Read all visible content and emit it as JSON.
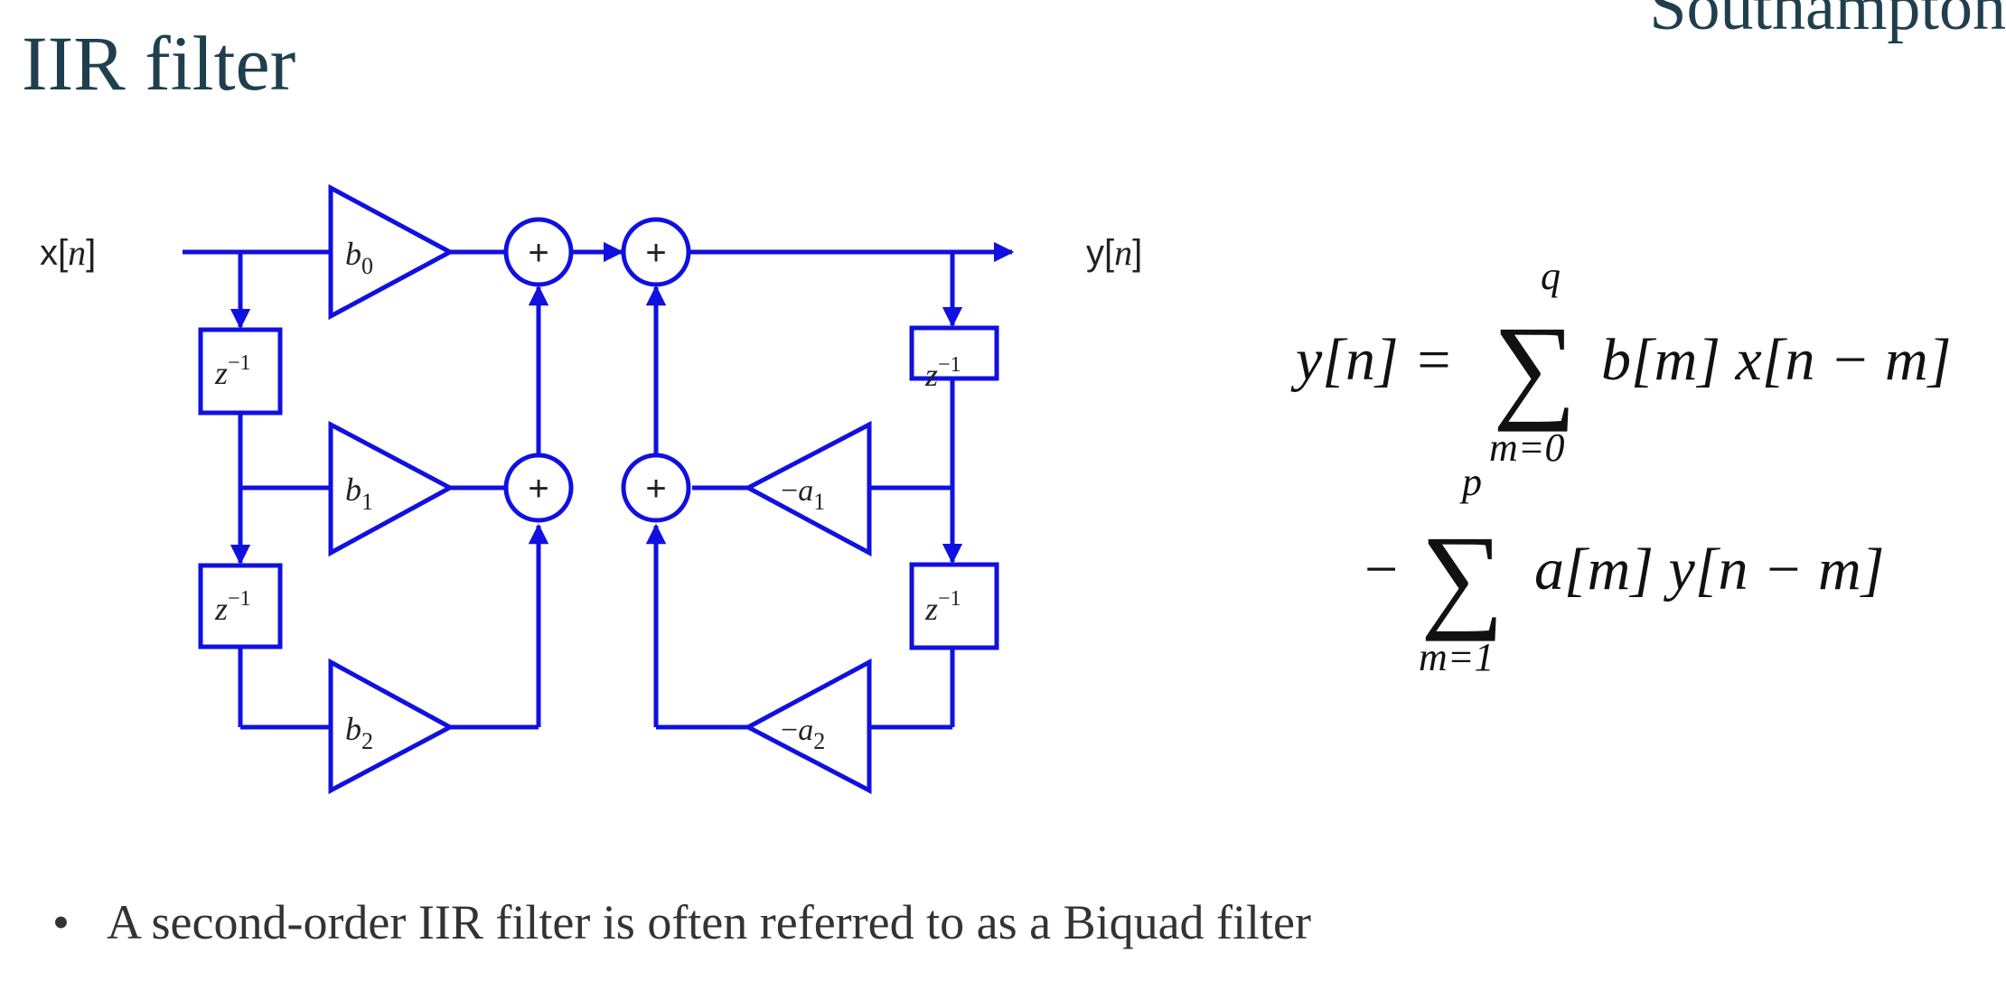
{
  "header": {
    "title": "IIR filter",
    "logo_text": "Southampton"
  },
  "diagram": {
    "input_label_prefix": "x[",
    "input_label_var": "n",
    "input_label_suffix": "]",
    "output_label_prefix": "y[",
    "output_label_var": "n",
    "output_label_suffix": "]",
    "feedforward_gains": [
      {
        "base": "b",
        "sub": "0"
      },
      {
        "base": "b",
        "sub": "1"
      },
      {
        "base": "b",
        "sub": "2"
      }
    ],
    "feedback_gains": [
      {
        "sign": "−",
        "base": "a",
        "sub": "1"
      },
      {
        "sign": "−",
        "base": "a",
        "sub": "2"
      }
    ],
    "delay_base": "z",
    "delay_exp": "−1",
    "adder_symbol": "+",
    "line_color": "#1010e0"
  },
  "equation": {
    "lhs": "y[n] =",
    "sum1_upper": "q",
    "sum1_lower": "m=0",
    "term1": "b[m] x[n − m]",
    "minus": "−",
    "sum2_upper": "p",
    "sum2_lower": "m=1",
    "term2": "a[m] y[n − m]",
    "sigma": "∑"
  },
  "bullets": [
    {
      "marker": "•",
      "text": "A second-order IIR filter is often referred to as a Biquad filter"
    }
  ]
}
